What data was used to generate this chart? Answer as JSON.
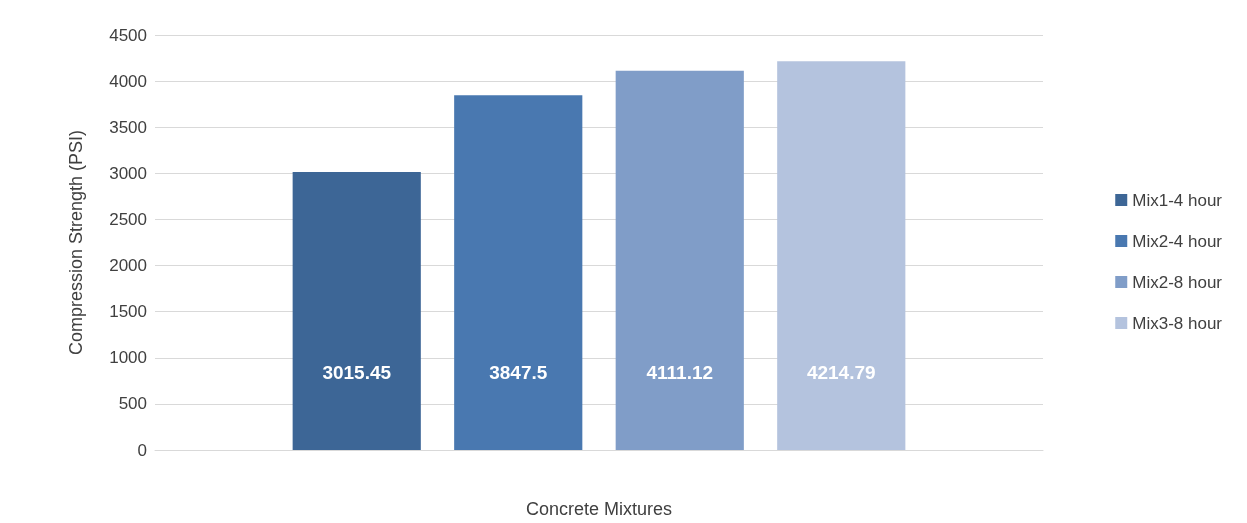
{
  "chart_data": {
    "type": "bar",
    "xlabel": "Concrete Mixtures",
    "ylabel": "Compression Strength (PSI)",
    "categories": [
      null
    ],
    "series": [
      {
        "name": "Mix1-4 hour",
        "color": "#3d6696",
        "values": [
          3015.45
        ]
      },
      {
        "name": "Mix2-4 hour",
        "color": "#4978b0",
        "values": [
          3847.5
        ]
      },
      {
        "name": "Mix2-8 hour",
        "color": "#809dc8",
        "values": [
          4111.12
        ]
      },
      {
        "name": "Mix3-8 hour",
        "color": "#b4c3de",
        "values": [
          4214.79
        ]
      }
    ],
    "ylim": [
      0,
      4500
    ],
    "yticks": [
      0,
      500,
      1000,
      1500,
      2000,
      2500,
      3000,
      3500,
      4000,
      4500
    ],
    "grid": "y",
    "legend": "right",
    "data_labels": true
  }
}
